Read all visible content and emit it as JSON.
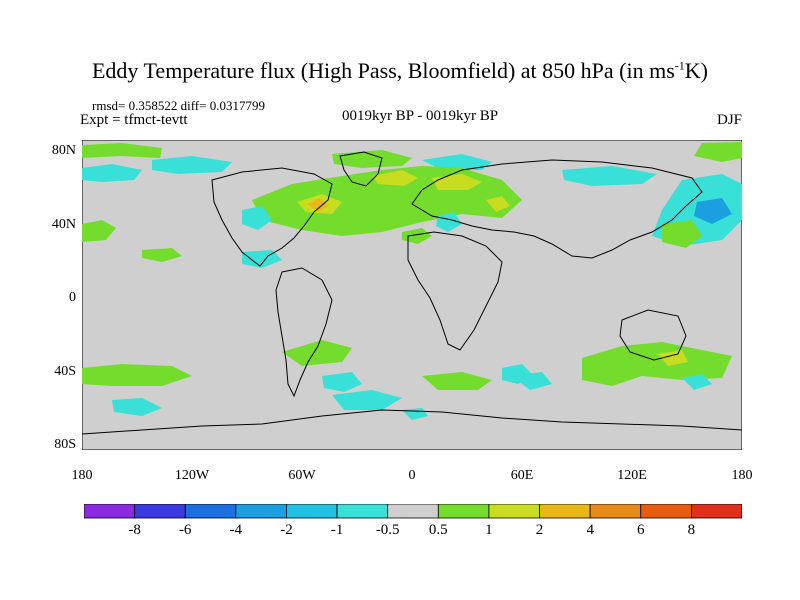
{
  "title_main": "Eddy Temperature flux (High Pass, Bloomfield) at 850 hPa (in ms",
  "title_sup": "-1",
  "title_end": "K)",
  "stats": "rmsd= 0.358522 diff= 0.0317799",
  "expt": "Expt = tfmct-tevtt",
  "center_label": "0019kyr BP - 0019kyr BP",
  "season": "DJF",
  "lat_labels": [
    "80N",
    "40N",
    "0",
    "40S",
    "80S"
  ],
  "lon_labels": [
    "180",
    "120W",
    "60W",
    "0",
    "60E",
    "120E",
    "180"
  ],
  "colorbar": {
    "labels": [
      "-8",
      "-6",
      "-4",
      "-2",
      "-1",
      "-0.5",
      "0.5",
      "1",
      "2",
      "4",
      "6",
      "8"
    ],
    "colors": [
      "#8a2be2",
      "#3a3ae0",
      "#1c6fe0",
      "#1aa0e0",
      "#22c0e0",
      "#38e0d8",
      "#cfcfcf",
      "#74dc2c",
      "#c8dc20",
      "#e8b818",
      "#e88a18",
      "#e85c10",
      "#e0301c"
    ]
  },
  "colors": {
    "land_ocean": "#cfcfcf",
    "positive_low": "#74dc2c",
    "positive_mid": "#c8dc20",
    "positive_high": "#e8b818",
    "negative_low": "#38e0d8",
    "negative_mid": "#22c0e0",
    "negative_high": "#1aa0e0"
  }
}
